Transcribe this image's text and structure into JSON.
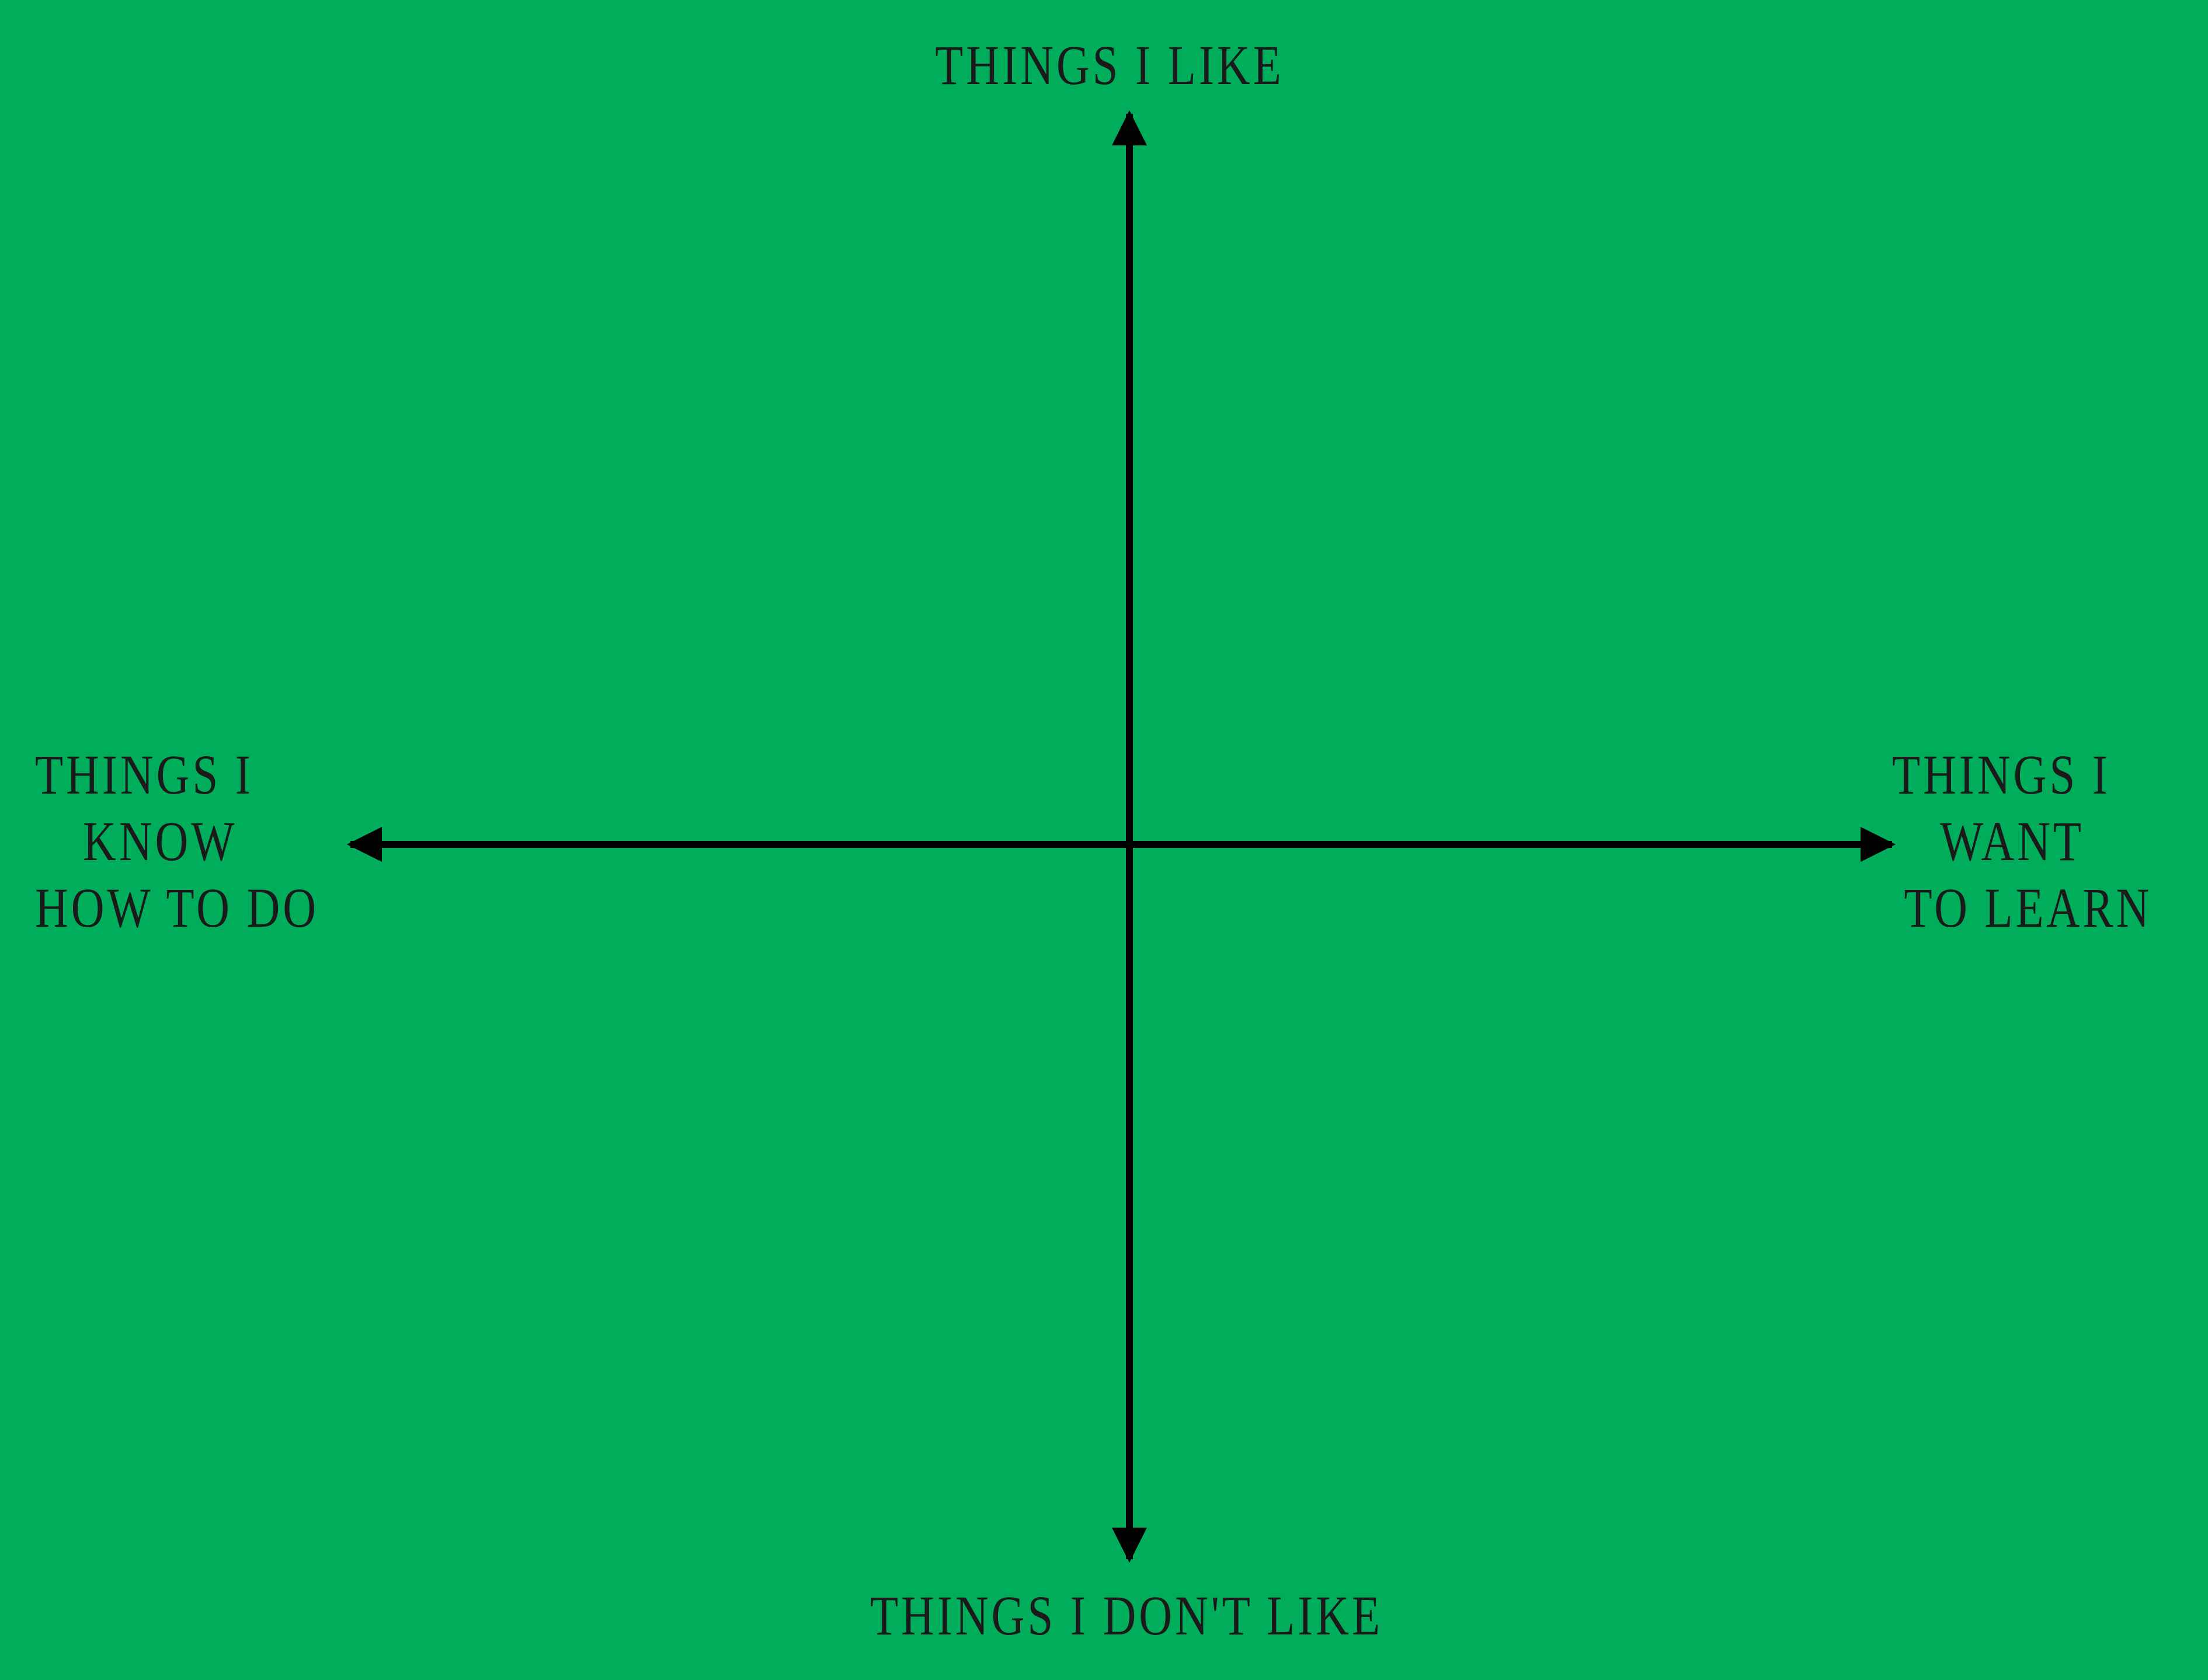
{
  "diagram": {
    "background_color": "#00ad5b",
    "axis_color": "#000000",
    "labels": {
      "top": [
        "THINGS I LIKE"
      ],
      "bottom": [
        "THINGS I DON'T LIKE"
      ],
      "left": [
        "THINGS I",
        "KNOW",
        "HOW TO DO"
      ],
      "right": [
        "THINGS I",
        "WANT",
        "TO LEARN"
      ]
    }
  }
}
